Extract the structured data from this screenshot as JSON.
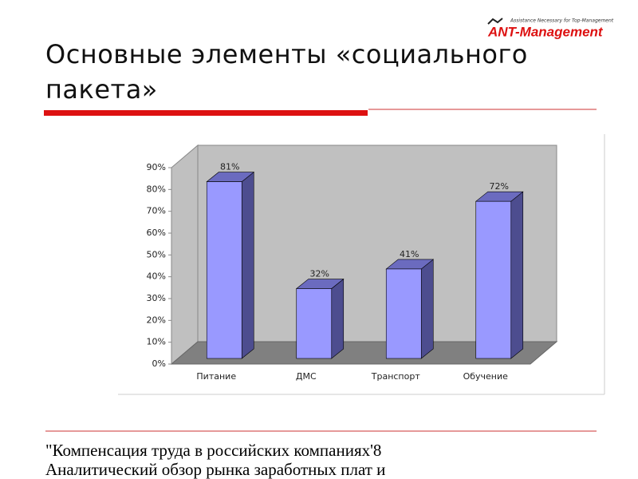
{
  "logo": {
    "tagline": "Assistance Necessary for Top-Management",
    "name": "ANT-Management"
  },
  "title": "Основные элементы «социального пакета»",
  "chart_data": {
    "type": "bar3d",
    "categories": [
      "Питание",
      "ДМС",
      "Транспорт",
      "Обучение"
    ],
    "values": [
      81,
      32,
      41,
      72
    ],
    "value_labels": [
      "81%",
      "32%",
      "41%",
      "72%"
    ],
    "color": "#9999ff",
    "ylim": [
      0,
      90
    ],
    "yticks": [
      {
        "value": 0,
        "label": "0%"
      },
      {
        "value": 10,
        "label": "10%"
      },
      {
        "value": 20,
        "label": "20%"
      },
      {
        "value": 30,
        "label": "30%"
      },
      {
        "value": 40,
        "label": "40%"
      },
      {
        "value": 50,
        "label": "50%"
      },
      {
        "value": 60,
        "label": "60%"
      },
      {
        "value": 70,
        "label": "70%"
      },
      {
        "value": 80,
        "label": "80%"
      },
      {
        "value": 90,
        "label": "90%"
      }
    ]
  },
  "footer": {
    "lines": [
      "\"Компенсация труда в российских компаниях'8",
      "Аналитический обзор рынка заработных плат и"
    ]
  }
}
